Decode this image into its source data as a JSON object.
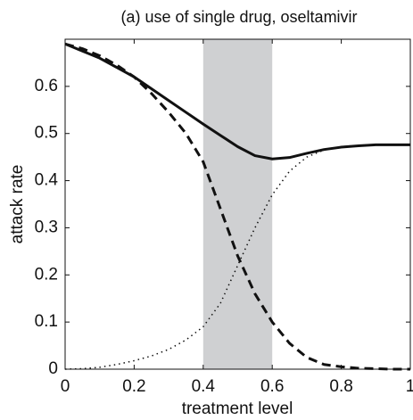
{
  "chart_data": {
    "type": "line",
    "title": "(a) use of single drug, oseltamivir",
    "xlabel": "treatment level",
    "ylabel": "attack rate",
    "x": [
      0,
      0.05,
      0.1,
      0.15,
      0.2,
      0.25,
      0.3,
      0.35,
      0.4,
      0.45,
      0.5,
      0.55,
      0.6,
      0.65,
      0.7,
      0.75,
      0.8,
      0.85,
      0.9,
      0.95,
      1
    ],
    "series": [
      {
        "color": "#111111",
        "dash": "solid",
        "values": [
          0.69,
          0.675,
          0.66,
          0.64,
          0.62,
          0.595,
          0.57,
          0.545,
          0.52,
          0.496,
          0.472,
          0.453,
          0.446,
          0.449,
          0.458,
          0.466,
          0.471,
          0.474,
          0.476,
          0.476,
          0.476
        ]
      },
      {
        "color": "#111111",
        "dash": "dashed",
        "values": [
          0.69,
          0.68,
          0.665,
          0.645,
          0.62,
          0.585,
          0.545,
          0.5,
          0.44,
          0.34,
          0.24,
          0.16,
          0.1,
          0.055,
          0.025,
          0.01,
          0.005,
          0.002,
          0.001,
          0,
          0
        ]
      },
      {
        "color": "#111111",
        "dash": "dotted",
        "values": [
          0,
          0.001,
          0.004,
          0.01,
          0.018,
          0.028,
          0.042,
          0.062,
          0.09,
          0.14,
          0.22,
          0.3,
          0.37,
          0.42,
          0.45,
          0.465,
          0.472,
          0.475,
          0.476,
          0.476,
          0.476
        ]
      }
    ],
    "span": [
      0.4,
      0.6
    ],
    "span_color": "#cfd0d2",
    "xlim": [
      0,
      1
    ],
    "xticks": [
      0,
      0.2,
      0.4,
      0.6,
      0.8,
      1
    ],
    "ylim": [
      0,
      0.7
    ],
    "yticks": [
      0,
      0.1,
      0.2,
      0.3,
      0.4,
      0.5,
      0.6
    ],
    "grid": false
  }
}
